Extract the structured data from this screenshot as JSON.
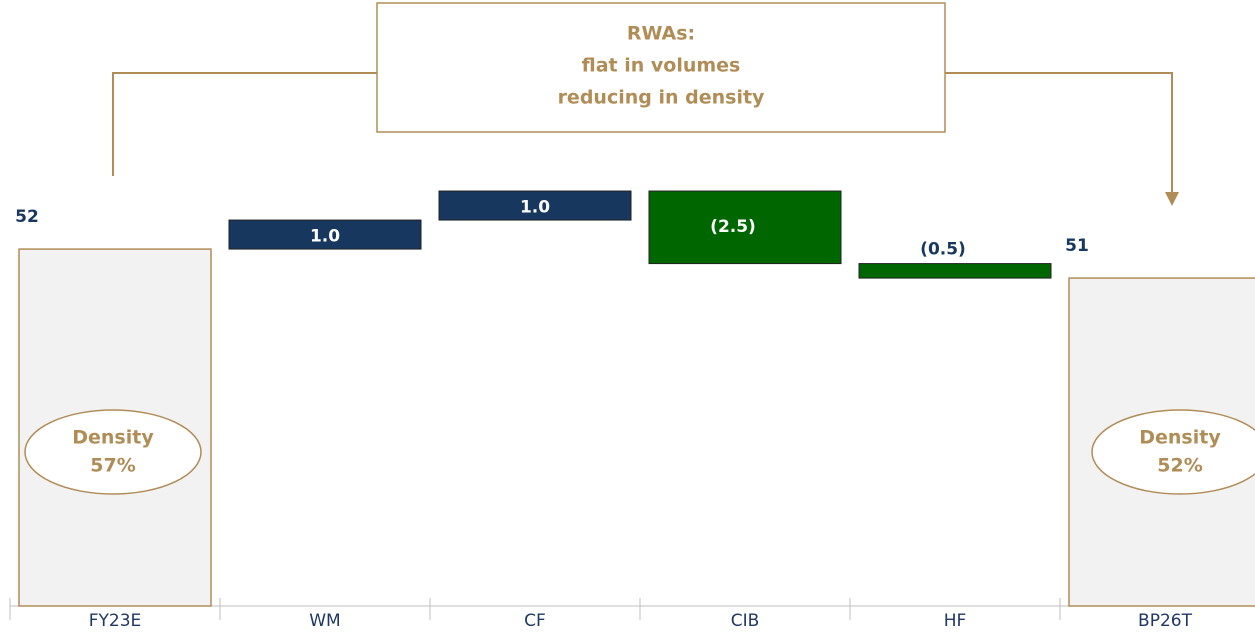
{
  "chart_data": {
    "type": "waterfall",
    "categories": [
      "FY23E",
      "WM",
      "CF",
      "CIB",
      "HF",
      "BP26T"
    ],
    "values": [
      52,
      1.0,
      1.0,
      -2.5,
      -0.5,
      51
    ],
    "value_labels": [
      "52",
      "1.0",
      "1.0",
      "(2.5)",
      "(0.5)",
      "51"
    ],
    "totals": [
      true,
      false,
      false,
      false,
      false,
      true
    ],
    "colors": {
      "total": "#f2f2f2",
      "increase": "#17375e",
      "decrease": "#006600"
    },
    "ylim": [
      39.7,
      56
    ],
    "callout": [
      "RWAs:",
      "flat in volumes",
      "reducing in density"
    ],
    "annotations": [
      {
        "category": 0,
        "lines": [
          "Density",
          "57%"
        ]
      },
      {
        "category": 5,
        "lines": [
          "Density",
          "52%"
        ]
      }
    ]
  }
}
